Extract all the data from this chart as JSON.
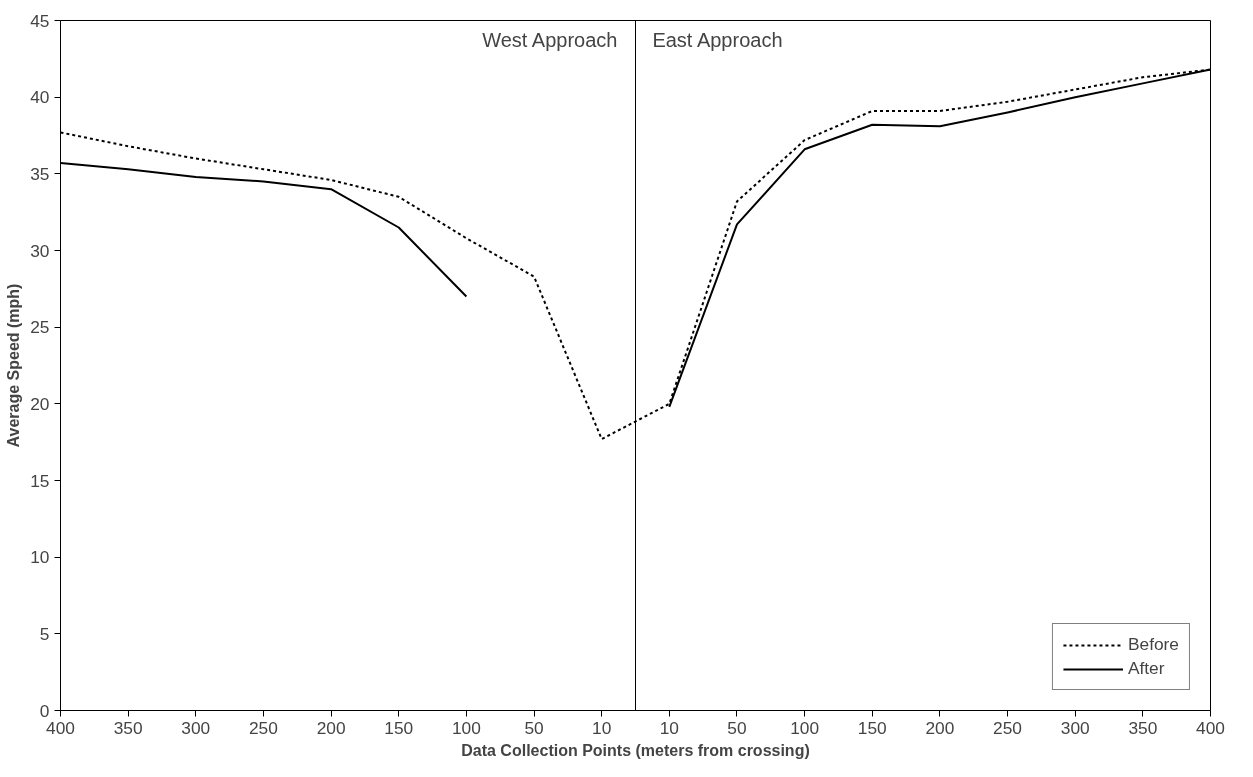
{
  "chart_data": {
    "type": "line",
    "xlabel": "Data Collection Points (meters from crossing)",
    "ylabel": "Average Speed (mph)",
    "categories": [
      "400",
      "350",
      "300",
      "250",
      "200",
      "150",
      "100",
      "50",
      "10",
      "10",
      "50",
      "100",
      "150",
      "200",
      "250",
      "300",
      "350",
      "400"
    ],
    "ylim": [
      0,
      45
    ],
    "yticks": [
      0,
      5,
      10,
      15,
      20,
      25,
      30,
      35,
      40,
      45
    ],
    "series": [
      {
        "name": "Before",
        "color": "#000000",
        "line_style": "dashed",
        "values": [
          37.7,
          36.8,
          36.0,
          35.3,
          34.6,
          33.5,
          30.8,
          28.3,
          17.7,
          20.0,
          33.2,
          37.2,
          39.1,
          39.1,
          39.7,
          40.5,
          41.3,
          41.8
        ]
      },
      {
        "name": "After",
        "color": "#000000",
        "line_style": "solid",
        "values": [
          35.7,
          35.3,
          34.8,
          34.5,
          34.0,
          31.5,
          27.0,
          null,
          null,
          19.8,
          31.7,
          36.6,
          38.2,
          38.1,
          39.0,
          40.0,
          40.9,
          41.8
        ]
      }
    ],
    "annotations": [
      "West Approach",
      "East Approach"
    ],
    "grid": false,
    "legend": "bottom right",
    "marker": "none"
  }
}
